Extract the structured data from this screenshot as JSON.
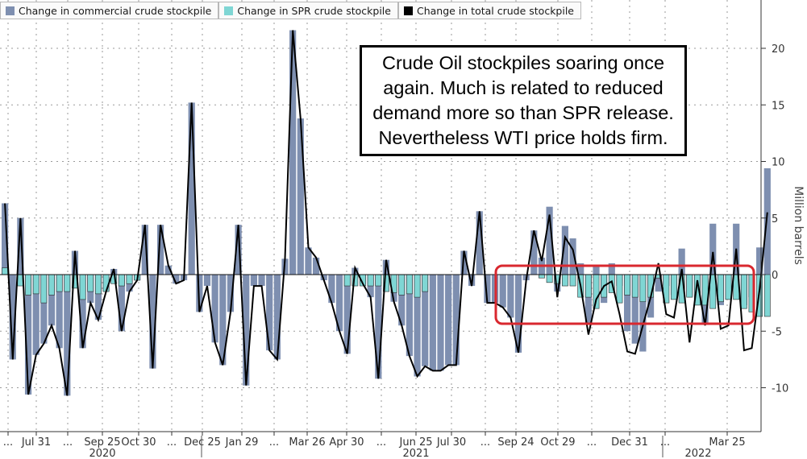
{
  "chart_data": {
    "type": "bar",
    "title": "",
    "ylabel": "Million barrels",
    "ylim": [
      -14,
      23
    ],
    "yticks": [
      20,
      15,
      10,
      5,
      0,
      -5,
      -10
    ],
    "grid": true,
    "legend_position": "top-left",
    "legend": [
      {
        "name": "Change in commercial crude stockpile",
        "color": "#7e8fb0"
      },
      {
        "name": "Change in SPR crude stockpile",
        "color": "#7fd6d4"
      },
      {
        "name": "Change in total crude stockpile",
        "color": "#000000"
      }
    ],
    "x_tick_labels": [
      "...",
      "Jul 31",
      "...",
      "Sep 25",
      "Oct 30",
      "...",
      "Dec 25",
      "Jan 29",
      "...",
      "Mar 26",
      "Apr 30",
      "...",
      "Jun 25",
      "Jul 30",
      "...",
      "Sep 24",
      "Oct 29",
      "...",
      "Dec 31",
      "...",
      "Mar 25"
    ],
    "x_year_labels": [
      "2020",
      "2021",
      "2022"
    ],
    "series": [
      {
        "name": "Change in commercial crude stockpile",
        "values": [
          6.3,
          -7.5,
          5.0,
          -10.6,
          -7.1,
          -6.1,
          -4.5,
          -6.5,
          -10.7,
          2.1,
          -6.5,
          -2.5,
          -4.0,
          -1.5,
          0.5,
          -5.0,
          -1.5,
          -0.5,
          4.4,
          -8.3,
          4.4,
          0.8,
          -0.8,
          -0.5,
          15.2,
          -3.3,
          -1.0,
          -6.0,
          -8.0,
          -3.3,
          4.4,
          -9.8,
          -1.0,
          -1.0,
          -6.7,
          -7.5,
          1.4,
          21.6,
          13.8,
          2.4,
          1.5,
          -0.5,
          -2.5,
          -5.0,
          -7.0,
          0.6,
          -0.8,
          -2.0,
          -9.2,
          1.3,
          -2.4,
          -4.5,
          -7.2,
          -9.0,
          -8.1,
          -8.5,
          -8.5,
          -8.0,
          -8.0,
          2.1,
          -1.0,
          5.6,
          -2.5,
          -2.5,
          -2.9,
          -3.8,
          -6.9,
          -0.5,
          3.9,
          1.5,
          6.0,
          -1.5,
          4.3,
          3.2,
          1.0,
          -4.3,
          0.8,
          -2.5,
          1.0,
          -1.0,
          -5.0,
          -6.1,
          -6.8,
          -3.8,
          -1.5,
          -1.0,
          -1.8,
          2.3,
          -1.9,
          -2.7,
          -4.4,
          4.5,
          -2.7,
          -2.2,
          4.5,
          -2.7,
          -2.0,
          2.4,
          9.4
        ],
        "color": "#7e8fb0"
      },
      {
        "name": "Change in SPR crude stockpile",
        "values": [
          0.6,
          0,
          -1.0,
          -1.8,
          -1.7,
          -2.5,
          -1.8,
          -1.5,
          -1.5,
          -1.2,
          -2.2,
          -1.5,
          -1.7,
          -1.5,
          -0.8,
          -1.0,
          -0.8,
          -0.5,
          0,
          0,
          0,
          0,
          0,
          0,
          0,
          0,
          0,
          0,
          0,
          0,
          0,
          0,
          0,
          0,
          0,
          0,
          0,
          0,
          0,
          0,
          0,
          0,
          0,
          0,
          -1.0,
          -1.0,
          -1.0,
          -1.0,
          -1.0,
          -1.5,
          -1.6,
          -1.8,
          -1.7,
          -2.0,
          -1.5,
          0,
          0,
          0,
          0,
          0,
          0,
          0,
          0,
          0,
          0,
          0,
          0,
          0,
          0,
          -0.3,
          -0.7,
          -0.8,
          -1.0,
          -1.0,
          -2.0,
          -2.0,
          -3.0,
          -2.0,
          -1.6,
          -2.5,
          -1.8,
          -2.0,
          -2.4,
          -2.0,
          -0.3,
          -2.5,
          -2.2,
          -2.5,
          -2.0,
          -2.7,
          -2.7,
          -3.0,
          -2.4,
          -2.2,
          -2.2,
          -3.0,
          -3.3,
          -3.7,
          -3.7
        ],
        "color": "#7fd6d4"
      },
      {
        "name": "Change in total crude stockpile",
        "values": [
          6.3,
          -7.5,
          5.0,
          -10.6,
          -7.1,
          -6.1,
          -4.5,
          -6.5,
          -10.7,
          2.1,
          -6.5,
          -2.5,
          -4.0,
          -1.5,
          0.5,
          -5.0,
          -1.5,
          -0.5,
          4.4,
          -8.3,
          4.4,
          0.8,
          -0.8,
          -0.5,
          15.2,
          -3.3,
          -1.0,
          -6.0,
          -8.0,
          -3.3,
          4.4,
          -9.8,
          -1.0,
          -1.0,
          -6.7,
          -7.5,
          1.4,
          21.6,
          13.8,
          2.4,
          1.5,
          -0.5,
          -2.5,
          -5.0,
          -7.0,
          0.6,
          -0.8,
          -2.0,
          -9.2,
          1.3,
          -2.4,
          -4.5,
          -7.2,
          -9.0,
          -8.1,
          -8.5,
          -8.5,
          -8.0,
          -8.0,
          2.1,
          -1.0,
          5.6,
          -2.5,
          -2.5,
          -2.9,
          -3.8,
          -6.9,
          -0.5,
          3.9,
          1.2,
          5.3,
          -2.0,
          3.3,
          2.2,
          -1.0,
          -5.3,
          -2.2,
          -1.0,
          -0.6,
          -3.5,
          -6.8,
          -7.0,
          -4.5,
          -2.0,
          1.0,
          -3.5,
          -3.8,
          0.5,
          -6.0,
          -0.5,
          -4.5,
          2.0,
          -4.8,
          -4.5,
          2.3,
          -6.7,
          -6.5,
          -1.3,
          5.5
        ],
        "color": "#000000"
      }
    ],
    "annotations": [
      {
        "text": "Crude Oil stockpiles soaring once again. Much is related to reduced demand more so than SPR release. Nevertheless WTI price holds firm."
      }
    ]
  }
}
